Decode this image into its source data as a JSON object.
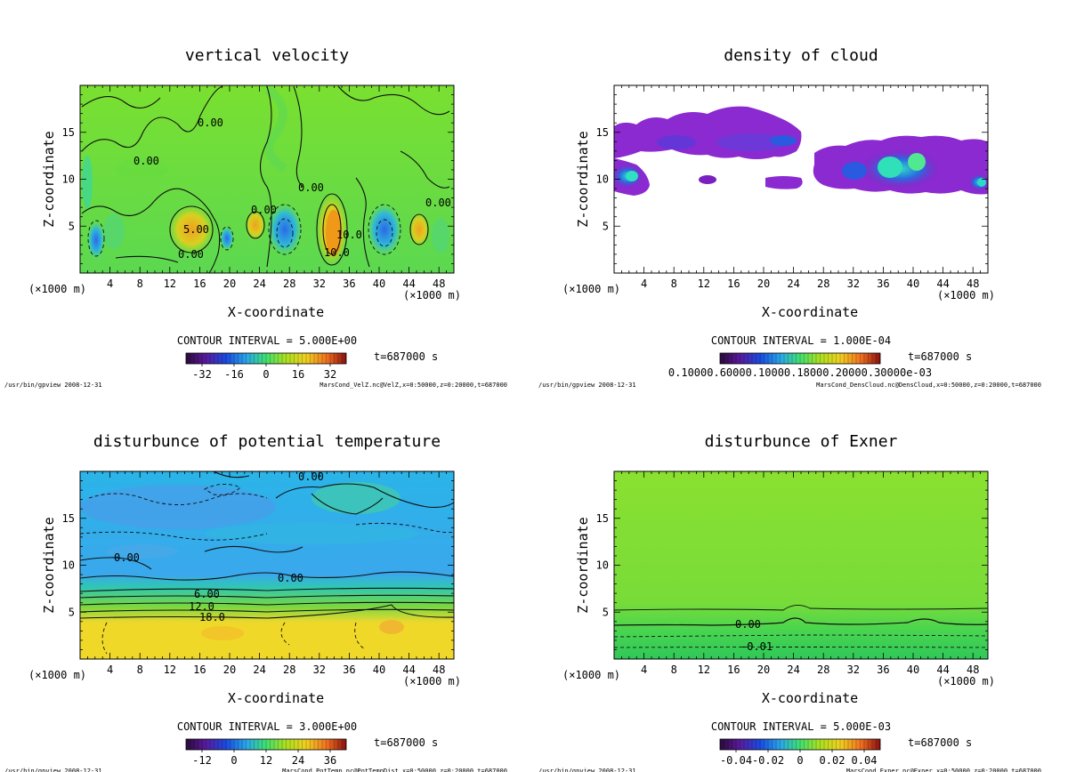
{
  "chart_data": [
    {
      "type": "heatmap",
      "id": "velz",
      "title": "vertical velocity",
      "xlabel": "X-coordinate",
      "ylabel": "Z-coordinate",
      "x_unit_left": "(×1000 m)",
      "x_unit_right": "(×1000 m)",
      "xlim": [
        0,
        50
      ],
      "ylim": [
        0,
        20
      ],
      "xticks": [
        4,
        8,
        12,
        16,
        20,
        24,
        28,
        32,
        36,
        40,
        44,
        48
      ],
      "yticks": [
        5,
        10,
        15
      ],
      "contour_interval": "CONTOUR INTERVAL = 5.000E+00",
      "time": "t=687000 s",
      "colorbar_ticks": [
        -32,
        -16,
        0,
        16,
        32
      ],
      "colorbar_range": [
        -40,
        40
      ],
      "contour_labels": [
        "0.00",
        "0.00",
        "5.00",
        "0.00",
        "10.0",
        "10.0",
        "0.00",
        "0.00",
        "0.00"
      ],
      "footer_left": "/usr/bin/gpview   2008-12-31",
      "footer_right": "MarsCond_VelZ.nc@VelZ,x=0:50000,z=0:20000,t=687000"
    },
    {
      "type": "heatmap",
      "id": "cloud",
      "title": "density of cloud",
      "xlabel": "X-coordinate",
      "ylabel": "Z-coordinate",
      "x_unit_left": "(×1000 m)",
      "x_unit_right": "(×1000 m)",
      "xlim": [
        0,
        50
      ],
      "ylim": [
        0,
        20
      ],
      "xticks": [
        4,
        8,
        12,
        16,
        20,
        24,
        28,
        32,
        36,
        40,
        44,
        48
      ],
      "yticks": [
        5,
        10,
        15
      ],
      "contour_interval": "CONTOUR INTERVAL = 1.000E-04",
      "time": "t=687000 s",
      "colorbar_tick_text": "0.10000.60000.10000.18000.20000.30000e-03",
      "footer_left": "/usr/bin/gpview   2008-12-31",
      "footer_right": "MarsCond_DensCloud.nc@DensCloud,x=0:50000,z=0:20000,t=687000"
    },
    {
      "type": "heatmap",
      "id": "pottemp",
      "title": "disturbunce of potential temperature",
      "xlabel": "X-coordinate",
      "ylabel": "Z-coordinate",
      "x_unit_left": "(×1000 m)",
      "x_unit_right": "(×1000 m)",
      "xlim": [
        0,
        50
      ],
      "ylim": [
        0,
        20
      ],
      "xticks": [
        4,
        8,
        12,
        16,
        20,
        24,
        28,
        32,
        36,
        40,
        44,
        48
      ],
      "yticks": [
        5,
        10,
        15
      ],
      "contour_interval": "CONTOUR INTERVAL = 3.000E+00",
      "time": "t=687000 s",
      "colorbar_ticks": [
        -12,
        0,
        12,
        24,
        36
      ],
      "colorbar_range": [
        -18,
        42
      ],
      "contour_labels": [
        "0.00",
        "0.00",
        "0.00",
        "6.00",
        "12.0",
        "18.0"
      ],
      "footer_left": "/usr/bin/gpview   2008-12-31",
      "footer_right": "MarsCond_PotTemp.nc@PotTempDist,x=0:50000,z=0:20000,t=687000"
    },
    {
      "type": "heatmap",
      "id": "exner",
      "title": "disturbunce of Exner",
      "xlabel": "X-coordinate",
      "ylabel": "Z-coordinate",
      "x_unit_left": "(×1000 m)",
      "x_unit_right": "(×1000 m)",
      "xlim": [
        0,
        50
      ],
      "ylim": [
        0,
        20
      ],
      "xticks": [
        4,
        8,
        12,
        16,
        20,
        24,
        28,
        32,
        36,
        40,
        44,
        48
      ],
      "yticks": [
        5,
        10,
        15
      ],
      "contour_interval": "CONTOUR INTERVAL = 5.000E-03",
      "time": "t=687000 s",
      "colorbar_ticks": [
        -0.04,
        -0.02,
        0,
        0.02,
        0.04
      ],
      "colorbar_range": [
        -0.05,
        0.05
      ],
      "contour_labels": [
        "0.00",
        "-0.01"
      ],
      "footer_left": "/usr/bin/gpview   2008-12-31",
      "footer_right": "MarsCond_Exner.nc@Exner,x=0:50000,z=0:20000,t=687000"
    }
  ]
}
